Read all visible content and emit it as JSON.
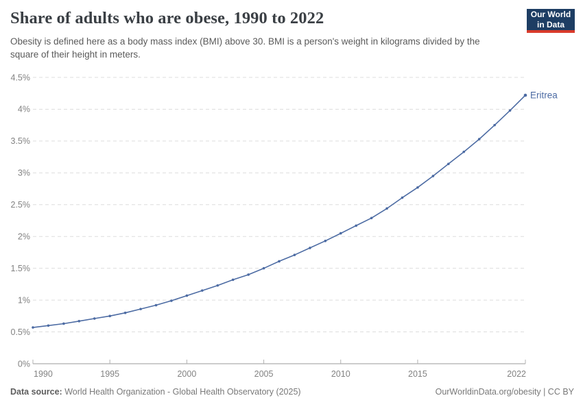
{
  "header": {
    "title": "Share of adults who are obese, 1990 to 2022",
    "subtitle": "Obesity is defined here as a body mass index (BMI) above 30. BMI is a person's weight in kilograms divided by the square of their height in meters.",
    "logo": {
      "line1": "Our World",
      "line2": "in Data"
    }
  },
  "footer": {
    "datasource_label": "Data source:",
    "datasource_text": " World Health Organization - Global Health Observatory (2025)",
    "attribution": "OurWorldinData.org/obesity | CC BY"
  },
  "colors": {
    "line": "#4c6ba3",
    "grid": "#dddddd",
    "axis_line": "#999999",
    "tick": "#b0b0b0",
    "axis_text": "#828282",
    "logo_navy": "#1d3d63",
    "logo_red": "#d93a2b",
    "title_text": "#3a3f44",
    "subtitle_text": "#5a5a5a"
  },
  "chart_data": {
    "type": "line",
    "title": "Share of adults who are obese, 1990 to 2022",
    "entity_label": "Eritrea",
    "x": [
      1990,
      1991,
      1992,
      1993,
      1994,
      1995,
      1996,
      1997,
      1998,
      1999,
      2000,
      2001,
      2002,
      2003,
      2004,
      2005,
      2006,
      2007,
      2008,
      2009,
      2010,
      2011,
      2012,
      2013,
      2014,
      2015,
      2016,
      2017,
      2018,
      2019,
      2020,
      2021,
      2022
    ],
    "series": [
      {
        "name": "Eritrea",
        "values": [
          0.57,
          0.6,
          0.63,
          0.67,
          0.71,
          0.75,
          0.8,
          0.86,
          0.92,
          0.99,
          1.07,
          1.15,
          1.23,
          1.32,
          1.4,
          1.5,
          1.61,
          1.71,
          1.82,
          1.93,
          2.05,
          2.17,
          2.29,
          2.44,
          2.61,
          2.77,
          2.95,
          3.14,
          3.33,
          3.53,
          3.75,
          3.98,
          4.22
        ]
      }
    ],
    "xlabel": "",
    "ylabel": "",
    "ylim": [
      0,
      4.5
    ],
    "yticks": [
      0,
      0.5,
      1,
      1.5,
      2,
      2.5,
      3,
      3.5,
      4,
      4.5
    ],
    "ytick_suffix": "%",
    "xticks": [
      1990,
      1995,
      2000,
      2005,
      2010,
      2015,
      2022
    ],
    "grid": "horizontal-dashed",
    "legend_position": "end-of-line-label"
  }
}
